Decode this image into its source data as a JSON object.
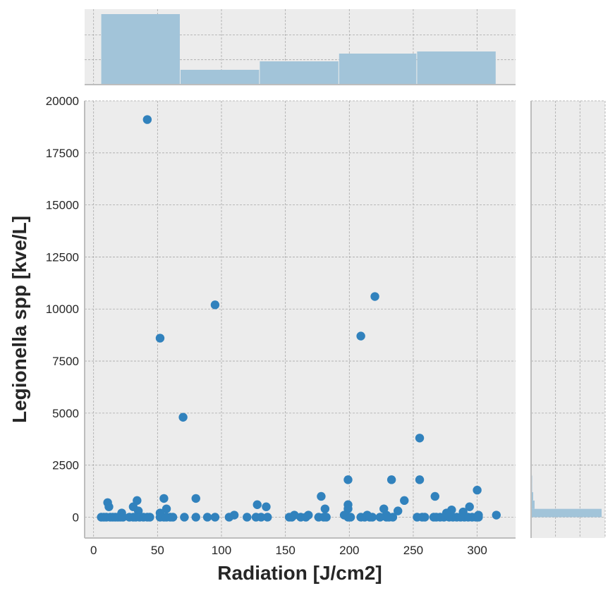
{
  "colors": {
    "panel_bg": "#ececec",
    "grid": "#a8a8a8",
    "spine": "#bdbdbd",
    "point": "#3182bd",
    "hist": "#a2c4d9"
  },
  "chart_data": {
    "type": "scatter",
    "subtype": "joint plot with marginal histograms",
    "xlabel": "Radiation [J/cm2]",
    "ylabel": "Legionella spp [kve/L]",
    "xlim": [
      -7,
      330
    ],
    "ylim": [
      -1000,
      20000
    ],
    "xticks": [
      0,
      50,
      100,
      150,
      200,
      250,
      300
    ],
    "yticks": [
      0,
      2500,
      5000,
      7500,
      10000,
      12500,
      15000,
      17500,
      20000
    ],
    "grid": true,
    "points": [
      {
        "x": 42,
        "y": 19100
      },
      {
        "x": 95,
        "y": 10200
      },
      {
        "x": 52,
        "y": 8600
      },
      {
        "x": 70,
        "y": 4800
      },
      {
        "x": 220,
        "y": 10600
      },
      {
        "x": 209,
        "y": 8700
      },
      {
        "x": 255,
        "y": 3800
      },
      {
        "x": 199,
        "y": 1800
      },
      {
        "x": 233,
        "y": 1800
      },
      {
        "x": 255,
        "y": 1800
      },
      {
        "x": 300,
        "y": 1300
      },
      {
        "x": 178,
        "y": 1000
      },
      {
        "x": 267,
        "y": 1000
      },
      {
        "x": 55,
        "y": 900
      },
      {
        "x": 80,
        "y": 900
      },
      {
        "x": 243,
        "y": 800
      },
      {
        "x": 34,
        "y": 800
      },
      {
        "x": 11,
        "y": 700
      },
      {
        "x": 128,
        "y": 600
      },
      {
        "x": 199,
        "y": 600
      },
      {
        "x": 31,
        "y": 500
      },
      {
        "x": 12,
        "y": 500
      },
      {
        "x": 135,
        "y": 500
      },
      {
        "x": 294,
        "y": 500
      },
      {
        "x": 57,
        "y": 400
      },
      {
        "x": 181,
        "y": 400
      },
      {
        "x": 227,
        "y": 400
      },
      {
        "x": 199,
        "y": 400
      },
      {
        "x": 280,
        "y": 350
      },
      {
        "x": 35,
        "y": 300
      },
      {
        "x": 238,
        "y": 300
      },
      {
        "x": 289,
        "y": 250
      },
      {
        "x": 22,
        "y": 200
      },
      {
        "x": 52,
        "y": 200
      },
      {
        "x": 276,
        "y": 200
      },
      {
        "x": 110,
        "y": 100
      },
      {
        "x": 157,
        "y": 100
      },
      {
        "x": 168,
        "y": 100
      },
      {
        "x": 196,
        "y": 100
      },
      {
        "x": 214,
        "y": 100
      },
      {
        "x": 315,
        "y": 100
      },
      {
        "x": 301,
        "y": 100
      },
      {
        "x": 229,
        "y": 100
      },
      {
        "x": 6,
        "y": 0
      },
      {
        "x": 8,
        "y": 0
      },
      {
        "x": 10,
        "y": 0
      },
      {
        "x": 13,
        "y": 0
      },
      {
        "x": 15,
        "y": 0
      },
      {
        "x": 17,
        "y": 0
      },
      {
        "x": 19,
        "y": 0
      },
      {
        "x": 21,
        "y": 0
      },
      {
        "x": 23,
        "y": 0
      },
      {
        "x": 28,
        "y": 0
      },
      {
        "x": 31,
        "y": 0
      },
      {
        "x": 33,
        "y": 0
      },
      {
        "x": 36,
        "y": 0
      },
      {
        "x": 39,
        "y": 0
      },
      {
        "x": 42,
        "y": 0
      },
      {
        "x": 44,
        "y": 0
      },
      {
        "x": 52,
        "y": 0
      },
      {
        "x": 55,
        "y": 0
      },
      {
        "x": 57,
        "y": 0
      },
      {
        "x": 60,
        "y": 0
      },
      {
        "x": 62,
        "y": 0
      },
      {
        "x": 71,
        "y": 0
      },
      {
        "x": 80,
        "y": 0
      },
      {
        "x": 89,
        "y": 0
      },
      {
        "x": 95,
        "y": 0
      },
      {
        "x": 106,
        "y": 0
      },
      {
        "x": 120,
        "y": 0
      },
      {
        "x": 127,
        "y": 0
      },
      {
        "x": 131,
        "y": 0
      },
      {
        "x": 136,
        "y": 0
      },
      {
        "x": 153,
        "y": 0
      },
      {
        "x": 155,
        "y": 0
      },
      {
        "x": 162,
        "y": 0
      },
      {
        "x": 166,
        "y": 0
      },
      {
        "x": 176,
        "y": 0
      },
      {
        "x": 180,
        "y": 0
      },
      {
        "x": 182,
        "y": 0
      },
      {
        "x": 199,
        "y": 0
      },
      {
        "x": 201,
        "y": 0
      },
      {
        "x": 209,
        "y": 0
      },
      {
        "x": 212,
        "y": 0
      },
      {
        "x": 216,
        "y": 0
      },
      {
        "x": 218,
        "y": 0
      },
      {
        "x": 224,
        "y": 0
      },
      {
        "x": 229,
        "y": 0
      },
      {
        "x": 231,
        "y": 0
      },
      {
        "x": 234,
        "y": 0
      },
      {
        "x": 253,
        "y": 0
      },
      {
        "x": 257,
        "y": 0
      },
      {
        "x": 259,
        "y": 0
      },
      {
        "x": 266,
        "y": 0
      },
      {
        "x": 268,
        "y": 0
      },
      {
        "x": 271,
        "y": 0
      },
      {
        "x": 274,
        "y": 0
      },
      {
        "x": 278,
        "y": 0
      },
      {
        "x": 281,
        "y": 0
      },
      {
        "x": 284,
        "y": 0
      },
      {
        "x": 287,
        "y": 0
      },
      {
        "x": 290,
        "y": 0
      },
      {
        "x": 293,
        "y": 0
      },
      {
        "x": 296,
        "y": 0
      },
      {
        "x": 299,
        "y": 0
      },
      {
        "x": 301,
        "y": 0
      }
    ],
    "x_histogram": {
      "bins": [
        [
          6,
          68
        ],
        [
          68,
          130
        ],
        [
          130,
          192
        ],
        [
          192,
          253
        ],
        [
          253,
          315
        ]
      ],
      "relative_heights": [
        1.0,
        0.21,
        0.33,
        0.44,
        0.47
      ]
    },
    "y_histogram": {
      "bins": [
        [
          0,
          400
        ],
        [
          400,
          800
        ],
        [
          800,
          1200
        ],
        [
          1200,
          1600
        ],
        [
          1600,
          2000
        ]
      ],
      "relative_lengths": [
        1.0,
        0.05,
        0.03,
        0.015,
        0.01
      ]
    }
  }
}
